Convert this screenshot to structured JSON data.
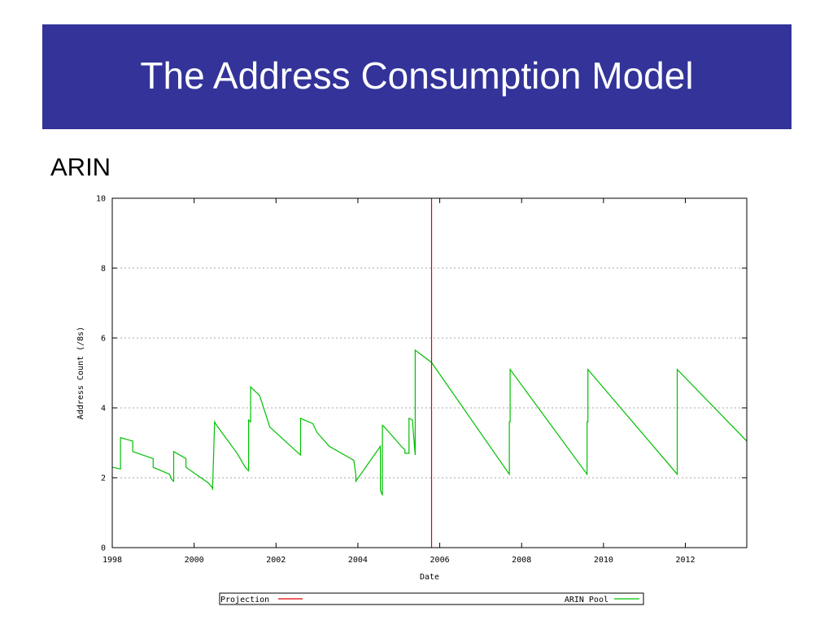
{
  "slide": {
    "title": "The Address Consumption Model",
    "subtitle": "ARIN"
  },
  "chart_data": {
    "type": "line",
    "title": "",
    "xlabel": "Date",
    "ylabel": "Address Count (/8s)",
    "xlim": [
      1998,
      2013.5
    ],
    "ylim": [
      0,
      10
    ],
    "xticks": [
      1998,
      2000,
      2002,
      2004,
      2006,
      2008,
      2010,
      2012
    ],
    "yticks": [
      0,
      2,
      4,
      6,
      8,
      10
    ],
    "grid": "dotted horizontal",
    "legend_placement": "bottom-below",
    "colors": {
      "arin_pool": "#00c000",
      "projection": "#e00000",
      "grid": "#aaaaaa"
    },
    "projection": {
      "name": "Projection",
      "x": 2005.8
    },
    "series": [
      {
        "name": "ARIN Pool",
        "x": [
          1998.0,
          1998.2,
          1998.2,
          1998.5,
          1998.5,
          1999.0,
          1999.0,
          1999.4,
          1999.45,
          1999.5,
          1999.5,
          1999.8,
          1999.8,
          2000.35,
          2000.45,
          2000.45,
          2000.5,
          2000.55,
          2001.05,
          2001.25,
          2001.33,
          2001.33,
          2001.38,
          2001.38,
          2001.6,
          2001.85,
          2002.55,
          2002.6,
          2002.6,
          2002.9,
          2003.0,
          2003.3,
          2003.9,
          2003.95,
          2003.95,
          2004.55,
          2004.55,
          2004.6,
          2004.6,
          2004.65,
          2005.1,
          2005.15,
          2005.15,
          2005.25,
          2005.25,
          2005.33,
          2005.4,
          2005.4,
          2005.8,
          2007.7,
          2007.7,
          2007.72,
          2007.72,
          2009.6,
          2009.6,
          2009.62,
          2009.62,
          2011.8,
          2011.8,
          2013.5
        ],
        "y": [
          2.3,
          2.25,
          3.15,
          3.05,
          2.75,
          2.55,
          2.3,
          2.1,
          1.95,
          1.9,
          2.75,
          2.55,
          2.3,
          1.85,
          1.7,
          1.65,
          3.6,
          3.5,
          2.7,
          2.3,
          2.2,
          3.65,
          3.6,
          4.6,
          4.35,
          3.45,
          2.7,
          2.65,
          3.7,
          3.55,
          3.3,
          2.9,
          2.5,
          2.1,
          1.9,
          2.9,
          1.65,
          1.5,
          3.5,
          3.45,
          2.85,
          2.8,
          2.7,
          2.7,
          3.7,
          3.65,
          2.65,
          5.65,
          5.3,
          2.1,
          3.6,
          3.6,
          5.1,
          2.1,
          3.6,
          3.6,
          5.1,
          2.1,
          5.1,
          3.05
        ]
      }
    ]
  }
}
